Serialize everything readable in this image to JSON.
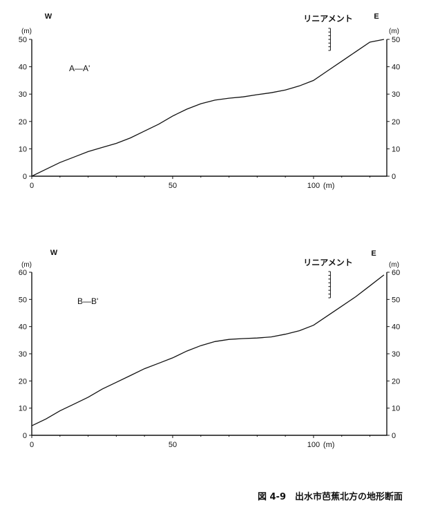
{
  "caption": "図 4-9　出水市芭蕉北方の地形断面",
  "chart_data": [
    {
      "type": "line",
      "section_label": "A—A'",
      "west_label": "W",
      "east_label": "E",
      "lineament_label": "リニアメント",
      "lineament_x": 106,
      "y_unit_left": "(m)",
      "y_unit_right": "(m)",
      "xlim": [
        0,
        126
      ],
      "ylim": [
        0,
        50
      ],
      "x_ticks": [
        0,
        50,
        100
      ],
      "x_tick_labels": [
        "0",
        "50",
        "100"
      ],
      "x_unit_label": "(m)",
      "y_ticks": [
        0,
        10,
        20,
        30,
        40,
        50
      ],
      "y_tick_labels": [
        "0",
        "10",
        "20",
        "30",
        "40",
        "50"
      ],
      "x": [
        0,
        5,
        10,
        15,
        20,
        25,
        30,
        35,
        40,
        45,
        50,
        55,
        60,
        65,
        70,
        75,
        80,
        85,
        90,
        95,
        100,
        105,
        110,
        115,
        120,
        125
      ],
      "y": [
        0,
        2.5,
        5,
        7,
        9,
        10.5,
        12,
        14,
        16.5,
        19,
        22,
        24.5,
        26.5,
        27.8,
        28.5,
        29,
        29.8,
        30.5,
        31.5,
        33,
        35,
        38.5,
        42,
        45.5,
        49,
        52
      ]
    },
    {
      "type": "line",
      "section_label": "B—B'",
      "west_label": "W",
      "east_label": "E",
      "lineament_label": "リニアメント",
      "lineament_x": 106,
      "y_unit_left": "(m)",
      "y_unit_right": "(m)",
      "xlim": [
        0,
        126
      ],
      "ylim": [
        0,
        60
      ],
      "x_ticks": [
        0,
        50,
        100
      ],
      "x_tick_labels": [
        "0",
        "50",
        "100"
      ],
      "x_unit_label": "(m)",
      "y_ticks": [
        0,
        10,
        20,
        30,
        40,
        50,
        60
      ],
      "y_tick_labels": [
        "0",
        "10",
        "20",
        "30",
        "40",
        "50",
        "60"
      ],
      "x": [
        0,
        5,
        10,
        15,
        20,
        25,
        30,
        35,
        40,
        45,
        50,
        55,
        60,
        65,
        70,
        75,
        80,
        85,
        90,
        95,
        100,
        105,
        110,
        115,
        120,
        125
      ],
      "y": [
        3.5,
        6,
        9,
        11.5,
        14,
        17,
        19.5,
        22,
        24.5,
        26.5,
        28.5,
        31,
        33,
        34.5,
        35.3,
        35.6,
        35.8,
        36.2,
        37.2,
        38.5,
        40.5,
        44,
        47.5,
        51,
        55,
        59
      ]
    }
  ]
}
